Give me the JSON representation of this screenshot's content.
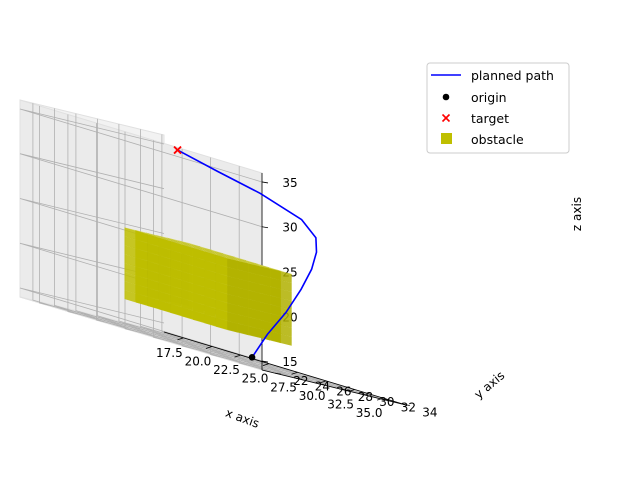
{
  "chart_data": {
    "type": "line",
    "projection": "3d",
    "title": "",
    "xlabel": "x axis",
    "ylabel": "y axis",
    "zlabel": "z axis",
    "xlim": [
      15.8,
      37.0
    ],
    "ylim": [
      20.8,
      34.2
    ],
    "zlim": [
      14.0,
      36.0
    ],
    "x_ticks": [
      "17.5",
      "20.0",
      "22.5",
      "25.0",
      "27.5",
      "30.0",
      "32.5",
      "35.0"
    ],
    "y_ticks": [
      "22",
      "24",
      "26",
      "28",
      "30",
      "32",
      "34"
    ],
    "z_ticks": [
      "15",
      "20",
      "25",
      "30",
      "35"
    ],
    "grid": true,
    "legend_position": "top-right",
    "legend": [
      {
        "label": "planned path",
        "marker": "line",
        "color": "#0000ff"
      },
      {
        "label": "origin",
        "marker": "dot",
        "color": "#000000"
      },
      {
        "label": "target",
        "marker": "x",
        "color": "#ff0000"
      },
      {
        "label": "obstacle",
        "marker": "square",
        "color": "#bfbf00"
      }
    ],
    "series": [
      {
        "name": "planned path",
        "color": "#0000ff",
        "x": [
          35.0,
          35.4,
          35.9,
          36.0,
          35.7,
          35.0,
          34.0,
          32.0,
          28.0,
          24.0,
          20.0
        ],
        "y": [
          22.0,
          23.0,
          24.2,
          25.5,
          26.8,
          28.0,
          29.0,
          29.8,
          30.2,
          30.5,
          31.0
        ],
        "z": [
          15.0,
          18.0,
          21.0,
          24.0,
          26.5,
          28.5,
          30.0,
          31.5,
          33.0,
          34.0,
          35.0
        ]
      },
      {
        "name": "origin",
        "color": "#000000",
        "x": [
          35.0
        ],
        "y": [
          22.0
        ],
        "z": [
          15.0
        ]
      },
      {
        "name": "target",
        "color": "#ff0000",
        "x": [
          20.0
        ],
        "y": [
          31.0
        ],
        "z": [
          35.0
        ]
      },
      {
        "name": "obstacle",
        "color": "#bfbf00",
        "x_range": [
          21.0,
          29.0
        ],
        "y_range": [
          26.0,
          31.0
        ],
        "z_range": [
          17.0,
          24.0
        ]
      }
    ]
  }
}
